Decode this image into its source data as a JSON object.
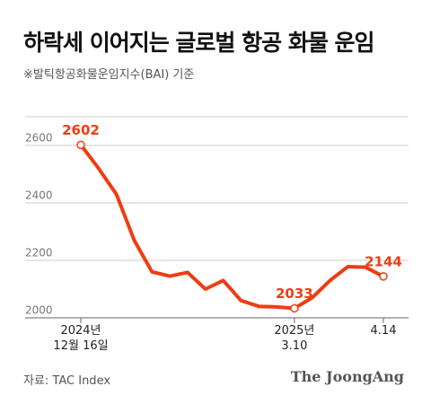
{
  "chart_data": {
    "type": "line",
    "title": "하락세 이어지는 글로벌 항공 화물 운임",
    "subtitle": "※발틱항공화물운임지수(BAI) 기준",
    "source": "자료: TAC Index",
    "brand": "The JoongAng",
    "categories": [
      "2024년\n12월 16일",
      null,
      null,
      null,
      null,
      null,
      null,
      null,
      null,
      null,
      null,
      null,
      "2025년\n3.10",
      null,
      null,
      null,
      null,
      "4.14"
    ],
    "series": [
      {
        "color": "#ee3d14",
        "values": [
          2602,
          2520,
          2430,
          2270,
          2160,
          2145,
          2158,
          2100,
          2130,
          2060,
          2040,
          2038,
          2033,
          2070,
          2130,
          2178,
          2176,
          2144
        ]
      }
    ],
    "labeled_points": [
      0,
      12,
      17
    ],
    "ylim": [
      2000,
      2700
    ],
    "yticks": [
      2000,
      2200,
      2400,
      2600
    ],
    "grid": true
  }
}
